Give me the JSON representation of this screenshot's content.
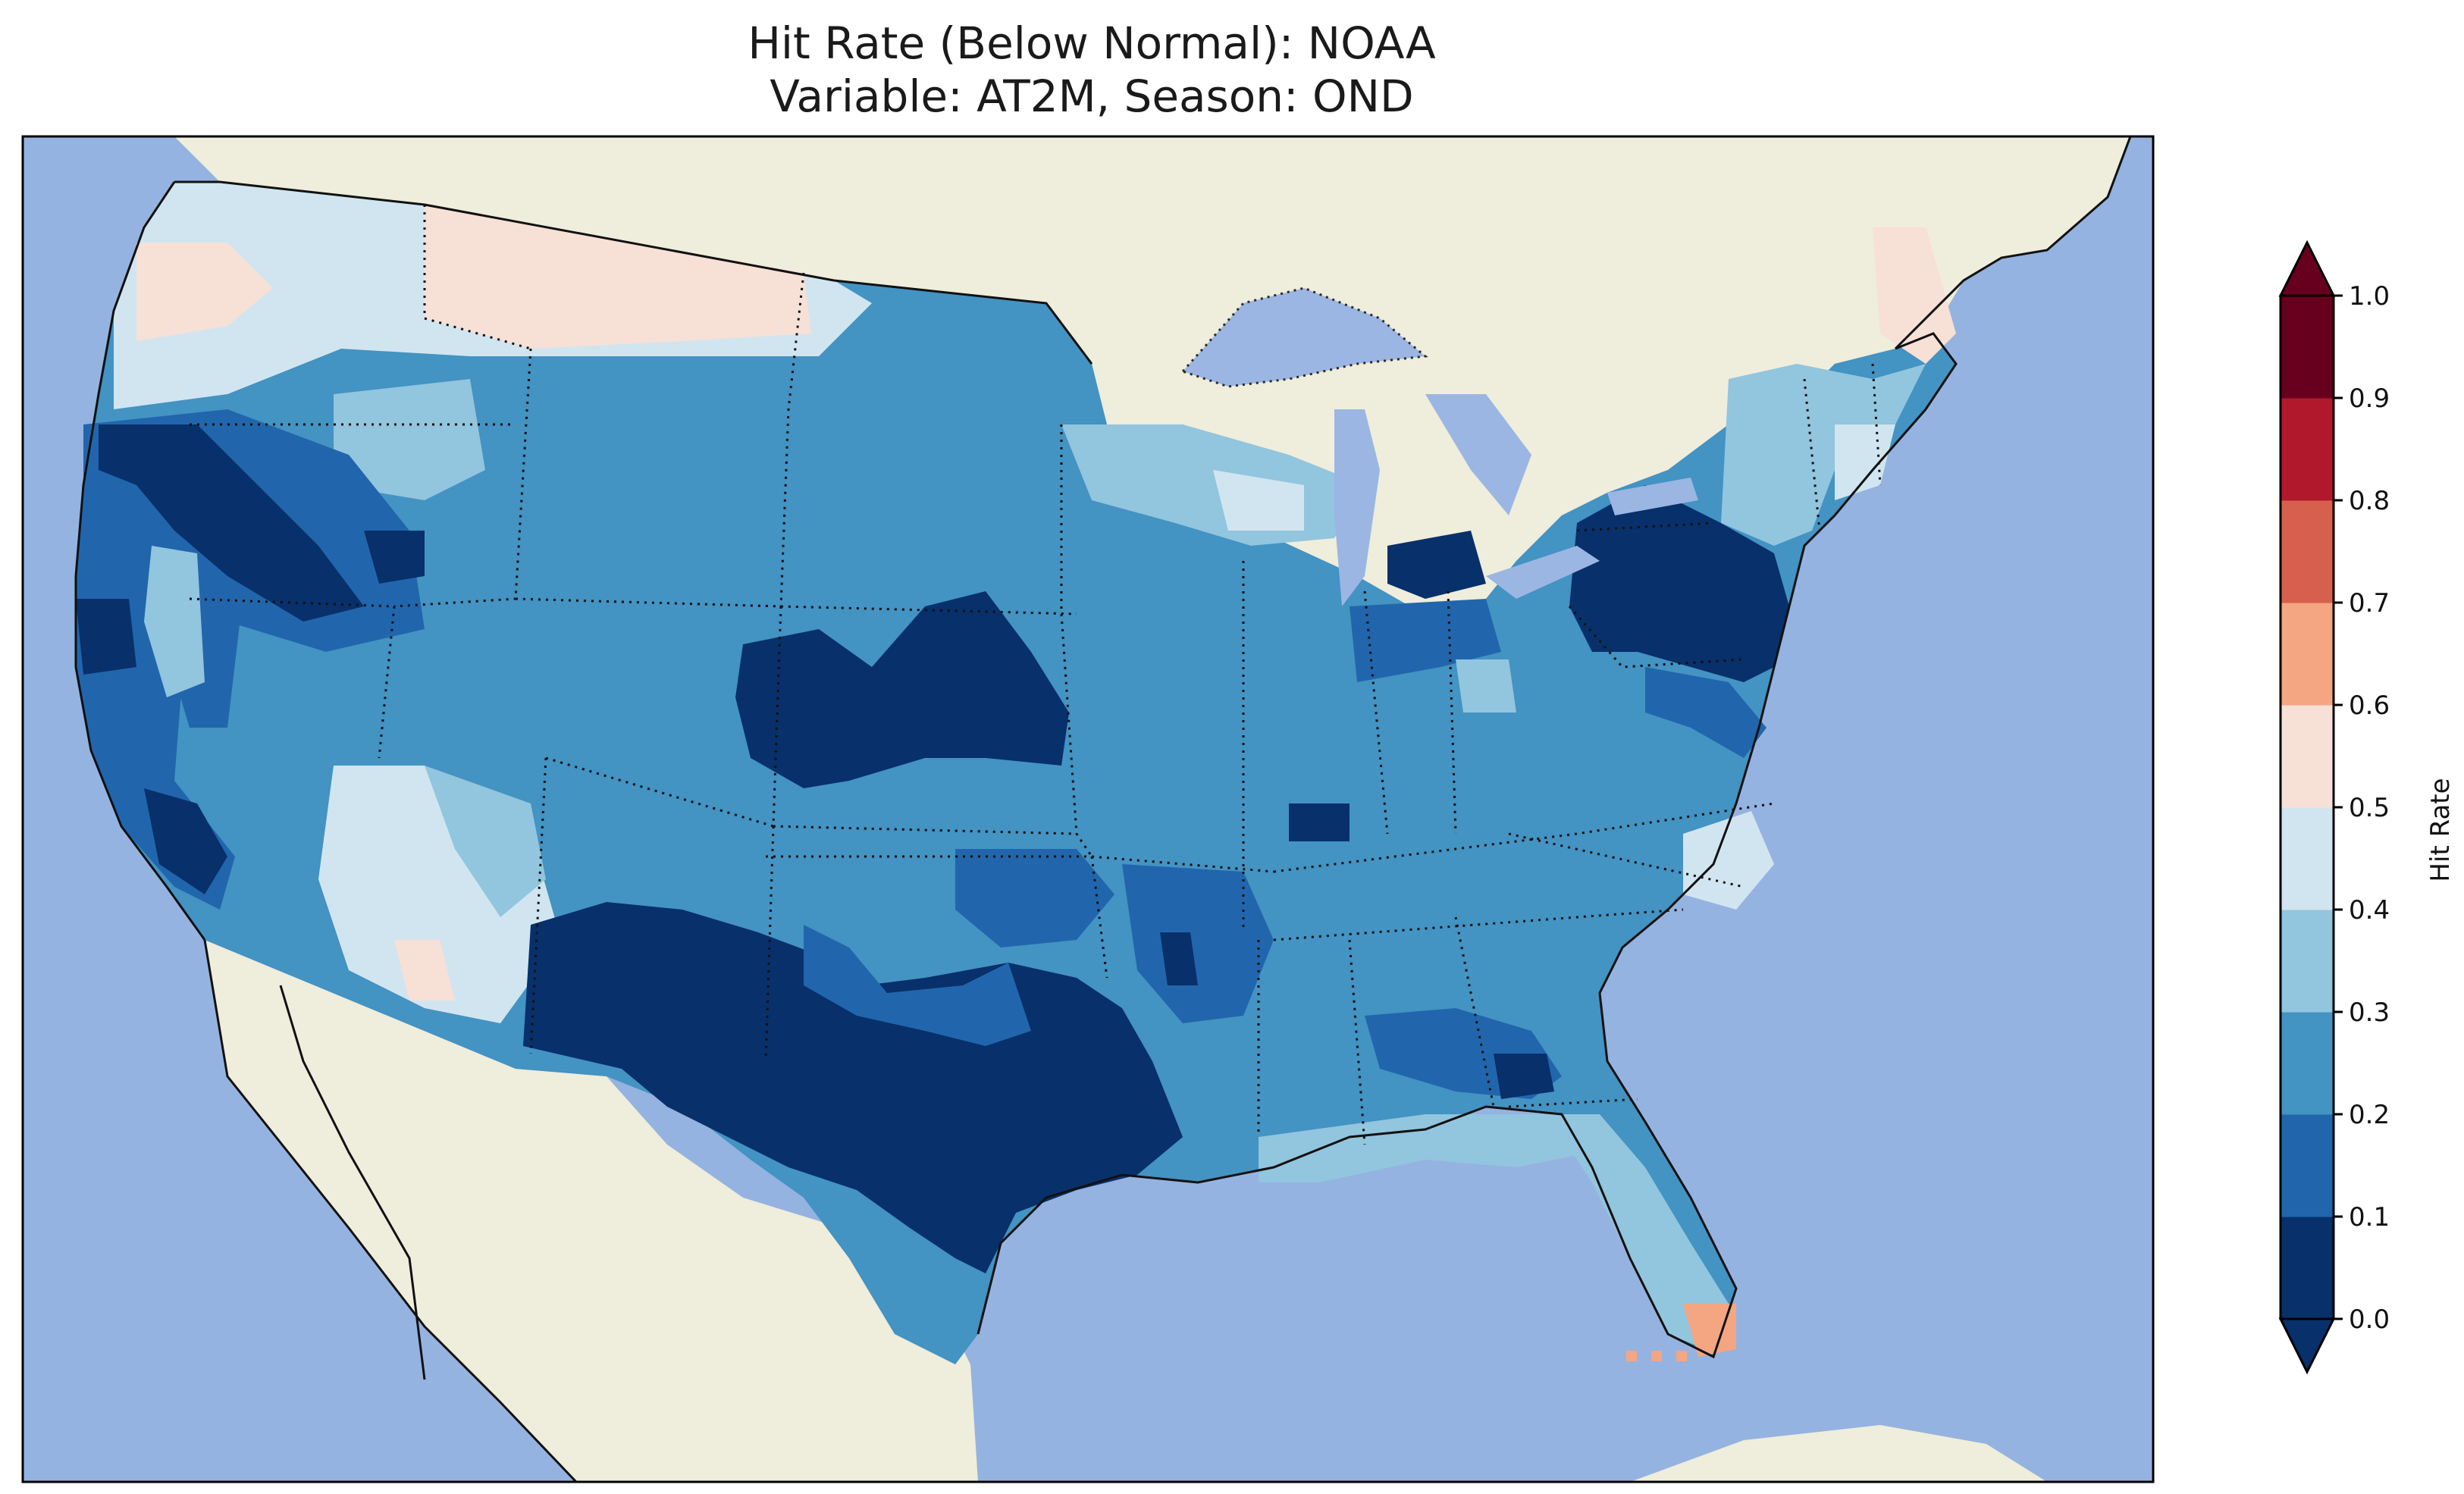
{
  "title": {
    "line1": "Hit Rate (Below Normal): NOAA",
    "line2": "Variable: AT2M, Season: OND"
  },
  "colors": {
    "ocean": "#95b3e0",
    "land": "#efeddb",
    "lakes": "#9bb6e2",
    "bins": [
      "#08306b",
      "#2166ac",
      "#4393c3",
      "#92c5de",
      "#d1e5f0",
      "#f7e0d6",
      "#f4a582",
      "#d6604d",
      "#b2182b",
      "#67001f"
    ]
  },
  "colorbar": {
    "label": "Hit Rate",
    "ticks": [
      "0.0",
      "0.1",
      "0.2",
      "0.3",
      "0.4",
      "0.5",
      "0.6",
      "0.7",
      "0.8",
      "0.9",
      "1.0"
    ],
    "extend": "both"
  },
  "regions": [
    {
      "name": "region-pacific-nw",
      "bin": 4
    },
    {
      "name": "region-northern-rockies",
      "bin": 5
    },
    {
      "name": "region-northern-plains",
      "bin": 2
    },
    {
      "name": "region-upper-midwest",
      "bin": 3
    },
    {
      "name": "region-california",
      "bin": 1
    },
    {
      "name": "region-great-basin",
      "bin": 1
    },
    {
      "name": "region-southwest",
      "bin": 4
    },
    {
      "name": "region-central-plains",
      "bin": 0
    },
    {
      "name": "region-texas",
      "bin": 0
    },
    {
      "name": "region-midwest",
      "bin": 2
    },
    {
      "name": "region-mid-atlantic",
      "bin": 0
    },
    {
      "name": "region-northeast",
      "bin": 3
    },
    {
      "name": "region-southeast",
      "bin": 2
    },
    {
      "name": "region-florida",
      "bin": 3
    },
    {
      "name": "region-south-florida",
      "bin": 6
    }
  ]
}
